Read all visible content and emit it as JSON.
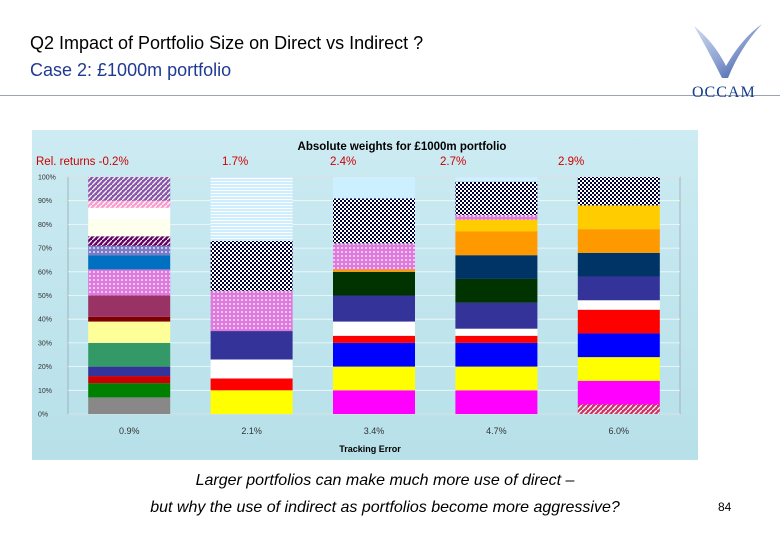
{
  "slide": {
    "title_line1": "Q2 Impact of Portfolio Size on Direct vs Indirect ?",
    "title_line2": "Case 2: £1000m portfolio",
    "logo_text": "OCCAM",
    "caption_line1": "Larger portfolios can make much more use of direct –",
    "caption_line2": "but why the use of indirect as portfolios become more aggressive?",
    "page_number": "84"
  },
  "chart_data": {
    "type": "bar",
    "stacked": true,
    "title": "Absolute weights for £1000m portfolio",
    "xlabel": "Tracking Error",
    "ylabel": "",
    "ylim": [
      0,
      100
    ],
    "yticks": [
      "0%",
      "10%",
      "20%",
      "30%",
      "40%",
      "50%",
      "60%",
      "70%",
      "80%",
      "90%",
      "100%"
    ],
    "categories": [
      "0.9%",
      "2.1%",
      "3.4%",
      "4.7%",
      "6.0%"
    ],
    "annotations": [
      "Rel. returns -0.2%",
      "1.7%",
      "2.4%",
      "2.7%",
      "2.9%"
    ],
    "stacks": [
      [
        {
          "value": 7,
          "color": "#888888",
          "pattern": "solid"
        },
        {
          "value": 6,
          "color": "#008000",
          "pattern": "solid"
        },
        {
          "value": 3,
          "color": "#cc0000",
          "pattern": "solid"
        },
        {
          "value": 4,
          "color": "#333399",
          "pattern": "solid"
        },
        {
          "value": 10,
          "color": "#339966",
          "pattern": "solid"
        },
        {
          "value": 9,
          "color": "#ffff99",
          "pattern": "solid"
        },
        {
          "value": 2,
          "color": "#800000",
          "pattern": "solid"
        },
        {
          "value": 9,
          "color": "#993366",
          "pattern": "solid"
        },
        {
          "value": 11,
          "color": "#cc33cc",
          "pattern": "dots"
        },
        {
          "value": 6,
          "color": "#0070c0",
          "pattern": "solid"
        },
        {
          "value": 4,
          "color": "#3333aa",
          "pattern": "dots"
        },
        {
          "value": 4,
          "color": "#660066",
          "pattern": "hatch"
        },
        {
          "value": 7,
          "color": "#ffffee",
          "pattern": "solid"
        },
        {
          "value": 5,
          "color": "#ffffff",
          "pattern": "solid"
        },
        {
          "value": 3,
          "color": "#ff99cc",
          "pattern": "hatch"
        },
        {
          "value": 10,
          "color": "#8855aa",
          "pattern": "hatch"
        }
      ],
      [
        {
          "value": 10,
          "color": "#ffff00",
          "pattern": "solid"
        },
        {
          "value": 5,
          "color": "#ff0000",
          "pattern": "solid"
        },
        {
          "value": 8,
          "color": "#ffffff",
          "pattern": "solid"
        },
        {
          "value": 12,
          "color": "#333399",
          "pattern": "solid"
        },
        {
          "value": 17,
          "color": "#cc33cc",
          "pattern": "dots"
        },
        {
          "value": 21,
          "color": "#000033",
          "pattern": "checker"
        },
        {
          "value": 27,
          "color": "#cceeff",
          "pattern": "lines"
        }
      ],
      [
        {
          "value": 10,
          "color": "#ff00ff",
          "pattern": "solid"
        },
        {
          "value": 10,
          "color": "#ffff00",
          "pattern": "solid"
        },
        {
          "value": 10,
          "color": "#0000ff",
          "pattern": "solid"
        },
        {
          "value": 3,
          "color": "#ff0000",
          "pattern": "solid"
        },
        {
          "value": 6,
          "color": "#ffffff",
          "pattern": "solid"
        },
        {
          "value": 11,
          "color": "#333399",
          "pattern": "solid"
        },
        {
          "value": 10,
          "color": "#003300",
          "pattern": "solid"
        },
        {
          "value": 1,
          "color": "#ff9900",
          "pattern": "solid"
        },
        {
          "value": 11,
          "color": "#cc33cc",
          "pattern": "dots"
        },
        {
          "value": 19,
          "color": "#000033",
          "pattern": "checker"
        },
        {
          "value": 9,
          "color": "#ccf0ff",
          "pattern": "solid"
        }
      ],
      [
        {
          "value": 10,
          "color": "#ff00ff",
          "pattern": "solid"
        },
        {
          "value": 10,
          "color": "#ffff00",
          "pattern": "solid"
        },
        {
          "value": 10,
          "color": "#0000ff",
          "pattern": "solid"
        },
        {
          "value": 3,
          "color": "#ff0000",
          "pattern": "solid"
        },
        {
          "value": 3,
          "color": "#ffffff",
          "pattern": "solid"
        },
        {
          "value": 11,
          "color": "#333399",
          "pattern": "solid"
        },
        {
          "value": 10,
          "color": "#003300",
          "pattern": "solid"
        },
        {
          "value": 10,
          "color": "#003366",
          "pattern": "solid"
        },
        {
          "value": 10,
          "color": "#ff9900",
          "pattern": "solid"
        },
        {
          "value": 5,
          "color": "#ffcc00",
          "pattern": "solid"
        },
        {
          "value": 2,
          "color": "#cc33cc",
          "pattern": "dots"
        },
        {
          "value": 14,
          "color": "#000033",
          "pattern": "checker"
        },
        {
          "value": 2,
          "color": "#ccf0ff",
          "pattern": "solid"
        }
      ],
      [
        {
          "value": 4,
          "color": "#cc3366",
          "pattern": "hatch"
        },
        {
          "value": 10,
          "color": "#ff00ff",
          "pattern": "solid"
        },
        {
          "value": 10,
          "color": "#ffff00",
          "pattern": "solid"
        },
        {
          "value": 10,
          "color": "#0000ff",
          "pattern": "solid"
        },
        {
          "value": 10,
          "color": "#ff0000",
          "pattern": "solid"
        },
        {
          "value": 4,
          "color": "#ffffff",
          "pattern": "solid"
        },
        {
          "value": 10,
          "color": "#333399",
          "pattern": "solid"
        },
        {
          "value": 10,
          "color": "#003366",
          "pattern": "solid"
        },
        {
          "value": 10,
          "color": "#ff9900",
          "pattern": "solid"
        },
        {
          "value": 10,
          "color": "#ffcc00",
          "pattern": "solid"
        },
        {
          "value": 12,
          "color": "#000033",
          "pattern": "checker"
        }
      ]
    ]
  }
}
